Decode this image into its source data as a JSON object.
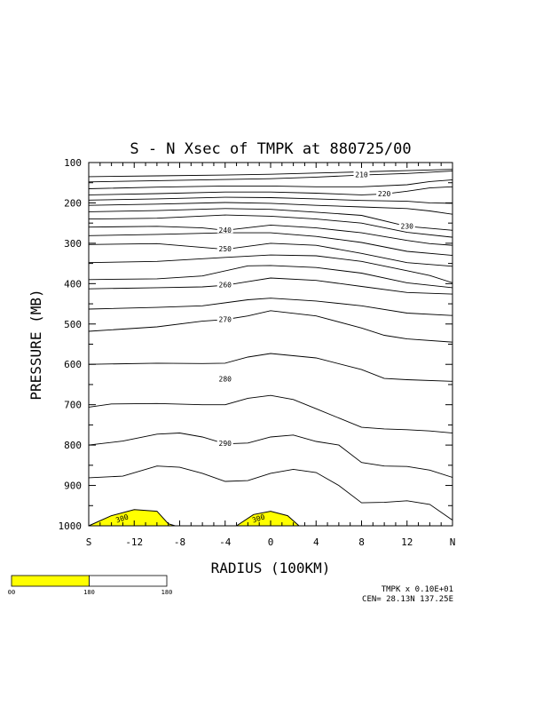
{
  "chart_data": {
    "type": "contour",
    "title": "S - N Xsec of TMPK at 880725/00",
    "xlabel": "RADIUS (100KM)",
    "ylabel": "PRESSURE (MB)",
    "xlim": [
      -16,
      16
    ],
    "ylim": [
      1000,
      100
    ],
    "x_ticks": [
      {
        "value": -16,
        "label": "S"
      },
      {
        "value": -12,
        "label": "-12"
      },
      {
        "value": -8,
        "label": "-8"
      },
      {
        "value": -4,
        "label": "-4"
      },
      {
        "value": 0,
        "label": "0"
      },
      {
        "value": 4,
        "label": "4"
      },
      {
        "value": 8,
        "label": "8"
      },
      {
        "value": 12,
        "label": "12"
      },
      {
        "value": 16,
        "label": "N"
      }
    ],
    "y_ticks": [
      {
        "value": 100,
        "label": "100"
      },
      {
        "value": 200,
        "label": "200"
      },
      {
        "value": 300,
        "label": "300"
      },
      {
        "value": 400,
        "label": "400"
      },
      {
        "value": 500,
        "label": "500"
      },
      {
        "value": 600,
        "label": "600"
      },
      {
        "value": 700,
        "label": "700"
      },
      {
        "value": 800,
        "label": "800"
      },
      {
        "value": 900,
        "label": "900"
      },
      {
        "value": 1000,
        "label": "1000"
      }
    ],
    "contours": [
      {
        "label": "",
        "points": [
          [
            -16,
            135
          ],
          [
            -10,
            133
          ],
          [
            -4,
            131
          ],
          [
            0,
            129
          ],
          [
            4,
            126
          ],
          [
            8,
            123
          ],
          [
            12,
            120
          ],
          [
            16,
            117
          ]
        ]
      },
      {
        "label": "210",
        "label_at": [
          8,
          131
        ],
        "points": [
          [
            -16,
            148
          ],
          [
            -10,
            145
          ],
          [
            -4,
            142
          ],
          [
            0,
            140
          ],
          [
            4,
            136
          ],
          [
            8,
            131
          ],
          [
            12,
            127
          ],
          [
            14,
            124
          ],
          [
            16,
            121
          ]
        ]
      },
      {
        "label": "",
        "points": [
          [
            -16,
            165
          ],
          [
            -10,
            161
          ],
          [
            -4,
            158
          ],
          [
            0,
            158
          ],
          [
            4,
            160
          ],
          [
            8,
            160
          ],
          [
            12,
            155
          ],
          [
            14,
            147
          ],
          [
            16,
            143
          ]
        ]
      },
      {
        "label": "220",
        "label_at": [
          10,
          178
        ],
        "points": [
          [
            -16,
            180
          ],
          [
            -10,
            177
          ],
          [
            -4,
            173
          ],
          [
            0,
            173
          ],
          [
            4,
            176
          ],
          [
            8,
            180
          ],
          [
            10,
            178
          ],
          [
            12,
            171
          ],
          [
            14,
            163
          ],
          [
            16,
            160
          ]
        ]
      },
      {
        "label": "",
        "points": [
          [
            -16,
            193
          ],
          [
            -10,
            190
          ],
          [
            -4,
            186
          ],
          [
            0,
            187
          ],
          [
            4,
            190
          ],
          [
            8,
            194
          ],
          [
            12,
            196
          ],
          [
            14,
            200
          ],
          [
            16,
            201
          ]
        ]
      },
      {
        "label": "",
        "points": [
          [
            -16,
            206
          ],
          [
            -10,
            203
          ],
          [
            -4,
            199
          ],
          [
            0,
            201
          ],
          [
            4,
            206
          ],
          [
            8,
            210
          ],
          [
            12,
            214
          ],
          [
            14,
            220
          ],
          [
            16,
            228
          ]
        ]
      },
      {
        "label": "230",
        "label_at": [
          12,
          258
        ],
        "points": [
          [
            -16,
            222
          ],
          [
            -10,
            219
          ],
          [
            -4,
            214
          ],
          [
            0,
            216
          ],
          [
            4,
            223
          ],
          [
            8,
            231
          ],
          [
            12,
            258
          ],
          [
            16,
            268
          ]
        ]
      },
      {
        "label": "",
        "points": [
          [
            -16,
            240
          ],
          [
            -10,
            238
          ],
          [
            -4,
            230
          ],
          [
            0,
            233
          ],
          [
            4,
            240
          ],
          [
            8,
            250
          ],
          [
            12,
            273
          ],
          [
            16,
            285
          ]
        ]
      },
      {
        "label": "240",
        "label_at": [
          -4,
          268
        ],
        "points": [
          [
            -16,
            260
          ],
          [
            -10,
            258
          ],
          [
            -6,
            262
          ],
          [
            -4,
            268
          ],
          [
            0,
            255
          ],
          [
            4,
            262
          ],
          [
            8,
            274
          ],
          [
            12,
            293
          ],
          [
            14,
            301
          ],
          [
            16,
            305
          ]
        ]
      },
      {
        "label": "",
        "points": [
          [
            -16,
            281
          ],
          [
            -10,
            278
          ],
          [
            -4,
            274
          ],
          [
            0,
            274
          ],
          [
            4,
            283
          ],
          [
            8,
            298
          ],
          [
            12,
            320
          ],
          [
            16,
            330
          ]
        ]
      },
      {
        "label": "250",
        "label_at": [
          -4,
          315
        ],
        "points": [
          [
            -16,
            303
          ],
          [
            -10,
            301
          ],
          [
            -4,
            315
          ],
          [
            0,
            300
          ],
          [
            4,
            305
          ],
          [
            8,
            325
          ],
          [
            12,
            348
          ],
          [
            16,
            357
          ]
        ]
      },
      {
        "label": "",
        "points": [
          [
            -16,
            348
          ],
          [
            -10,
            345
          ],
          [
            -4,
            335
          ],
          [
            0,
            329
          ],
          [
            4,
            331
          ],
          [
            8,
            345
          ],
          [
            12,
            368
          ],
          [
            14,
            380
          ],
          [
            16,
            398
          ]
        ]
      },
      {
        "label": "",
        "points": [
          [
            -16,
            390
          ],
          [
            -10,
            388
          ],
          [
            -6,
            381
          ],
          [
            -2,
            356
          ],
          [
            0,
            355
          ],
          [
            4,
            360
          ],
          [
            8,
            374
          ],
          [
            12,
            398
          ],
          [
            16,
            410
          ]
        ]
      },
      {
        "label": "260",
        "label_at": [
          -4,
          404
        ],
        "points": [
          [
            -16,
            413
          ],
          [
            -10,
            410
          ],
          [
            -6,
            408
          ],
          [
            -4,
            404
          ],
          [
            -2,
            395
          ],
          [
            0,
            386
          ],
          [
            4,
            392
          ],
          [
            8,
            407
          ],
          [
            12,
            422
          ],
          [
            16,
            426
          ]
        ]
      },
      {
        "label": "",
        "points": [
          [
            -16,
            463
          ],
          [
            -10,
            459
          ],
          [
            -6,
            455
          ],
          [
            -2,
            440
          ],
          [
            0,
            436
          ],
          [
            4,
            443
          ],
          [
            8,
            455
          ],
          [
            12,
            473
          ],
          [
            16,
            479
          ]
        ]
      },
      {
        "label": "270",
        "label_at": [
          -4,
          489
        ],
        "points": [
          [
            -16,
            518
          ],
          [
            -10,
            507
          ],
          [
            -6,
            493
          ],
          [
            -4,
            489
          ],
          [
            -2,
            480
          ],
          [
            0,
            467
          ],
          [
            4,
            480
          ],
          [
            8,
            510
          ],
          [
            10,
            528
          ],
          [
            12,
            537
          ],
          [
            16,
            545
          ]
        ]
      },
      {
        "label": "280",
        "label_at": [
          -4,
          637
        ],
        "points": [
          [
            -16,
            600
          ],
          [
            -10,
            597
          ],
          [
            -6,
            598
          ],
          [
            -4,
            597
          ],
          [
            -2,
            582
          ],
          [
            0,
            573
          ],
          [
            4,
            584
          ],
          [
            8,
            613
          ],
          [
            10,
            635
          ],
          [
            12,
            638
          ],
          [
            16,
            642
          ]
        ]
      },
      {
        "label": "",
        "points": [
          [
            -16,
            706
          ],
          [
            -14,
            698
          ],
          [
            -10,
            697
          ],
          [
            -6,
            700
          ],
          [
            -4,
            700
          ],
          [
            -2,
            684
          ],
          [
            0,
            677
          ],
          [
            2,
            687
          ],
          [
            4,
            710
          ],
          [
            8,
            756
          ],
          [
            10,
            760
          ],
          [
            12,
            762
          ],
          [
            14,
            765
          ],
          [
            16,
            770
          ]
        ]
      },
      {
        "label": "290",
        "label_at": [
          -4,
          797
        ],
        "points": [
          [
            -16,
            800
          ],
          [
            -13,
            790
          ],
          [
            -10,
            773
          ],
          [
            -8,
            770
          ],
          [
            -6,
            780
          ],
          [
            -4,
            797
          ],
          [
            -2,
            795
          ],
          [
            0,
            780
          ],
          [
            2,
            775
          ],
          [
            4,
            791
          ],
          [
            6,
            800
          ],
          [
            8,
            843
          ],
          [
            10,
            852
          ],
          [
            12,
            853
          ],
          [
            14,
            862
          ],
          [
            16,
            880
          ]
        ]
      },
      {
        "label": "",
        "points": [
          [
            -16,
            881
          ],
          [
            -13,
            877
          ],
          [
            -10,
            852
          ],
          [
            -8,
            855
          ],
          [
            -6,
            870
          ],
          [
            -4,
            890
          ],
          [
            -2,
            888
          ],
          [
            0,
            870
          ],
          [
            2,
            860
          ],
          [
            4,
            868
          ],
          [
            6,
            900
          ],
          [
            8,
            943
          ],
          [
            10,
            942
          ],
          [
            12,
            938
          ],
          [
            14,
            947
          ],
          [
            16,
            986
          ]
        ]
      }
    ],
    "shaded_regions": [
      {
        "label": "300",
        "fill": "#ffff00",
        "points": [
          [
            -16,
            1000
          ],
          [
            -14,
            975
          ],
          [
            -12,
            960
          ],
          [
            -10,
            964
          ],
          [
            -9,
            995
          ],
          [
            -8.4,
            1000
          ]
        ]
      },
      {
        "label": "300",
        "fill": "#ffff00",
        "points": [
          [
            -3,
            1000
          ],
          [
            -1.5,
            972
          ],
          [
            0,
            964
          ],
          [
            1.5,
            975
          ],
          [
            2.5,
            1000
          ]
        ]
      }
    ],
    "colorbar": {
      "colors": [
        "#ffff00",
        "#ffffff"
      ],
      "ticks": [
        "00",
        "180",
        "180"
      ]
    },
    "footnotes": [
      "TMPK x 0.10E+01",
      "CEN= 28.13N 137.25E"
    ]
  }
}
